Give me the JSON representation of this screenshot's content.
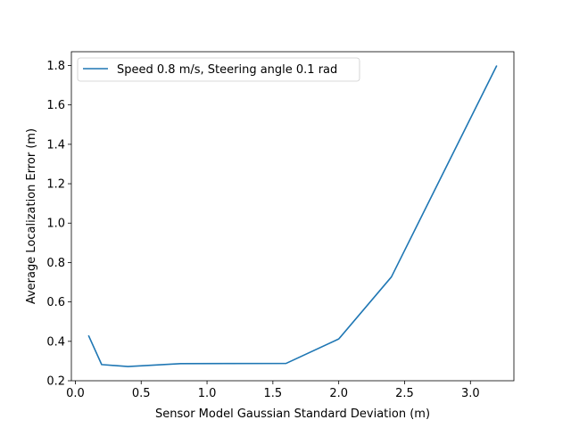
{
  "chart_data": {
    "type": "line",
    "title": "",
    "xlabel": "Sensor Model Gaussian Standard Deviation (m)",
    "ylabel": "Average Localization Error (m)",
    "xlim": [
      -0.03,
      3.33
    ],
    "ylim": [
      0.2,
      1.87
    ],
    "xticks": [
      "0.0",
      "0.5",
      "1.0",
      "1.5",
      "2.0",
      "2.5",
      "3.0"
    ],
    "yticks": [
      "0.2",
      "0.4",
      "0.6",
      "0.8",
      "1.0",
      "1.2",
      "1.4",
      "1.6",
      "1.8"
    ],
    "grid": false,
    "legend_position": "upper-left",
    "series": [
      {
        "name": "Speed 0.8 m/s, Steering angle 0.1 rad",
        "color": "#1f77b4",
        "x": [
          0.1,
          0.2,
          0.4,
          0.8,
          1.6,
          2.0,
          2.4,
          3.2
        ],
        "y": [
          0.43,
          0.282,
          0.272,
          0.287,
          0.288,
          0.412,
          0.727,
          1.8
        ]
      }
    ]
  }
}
